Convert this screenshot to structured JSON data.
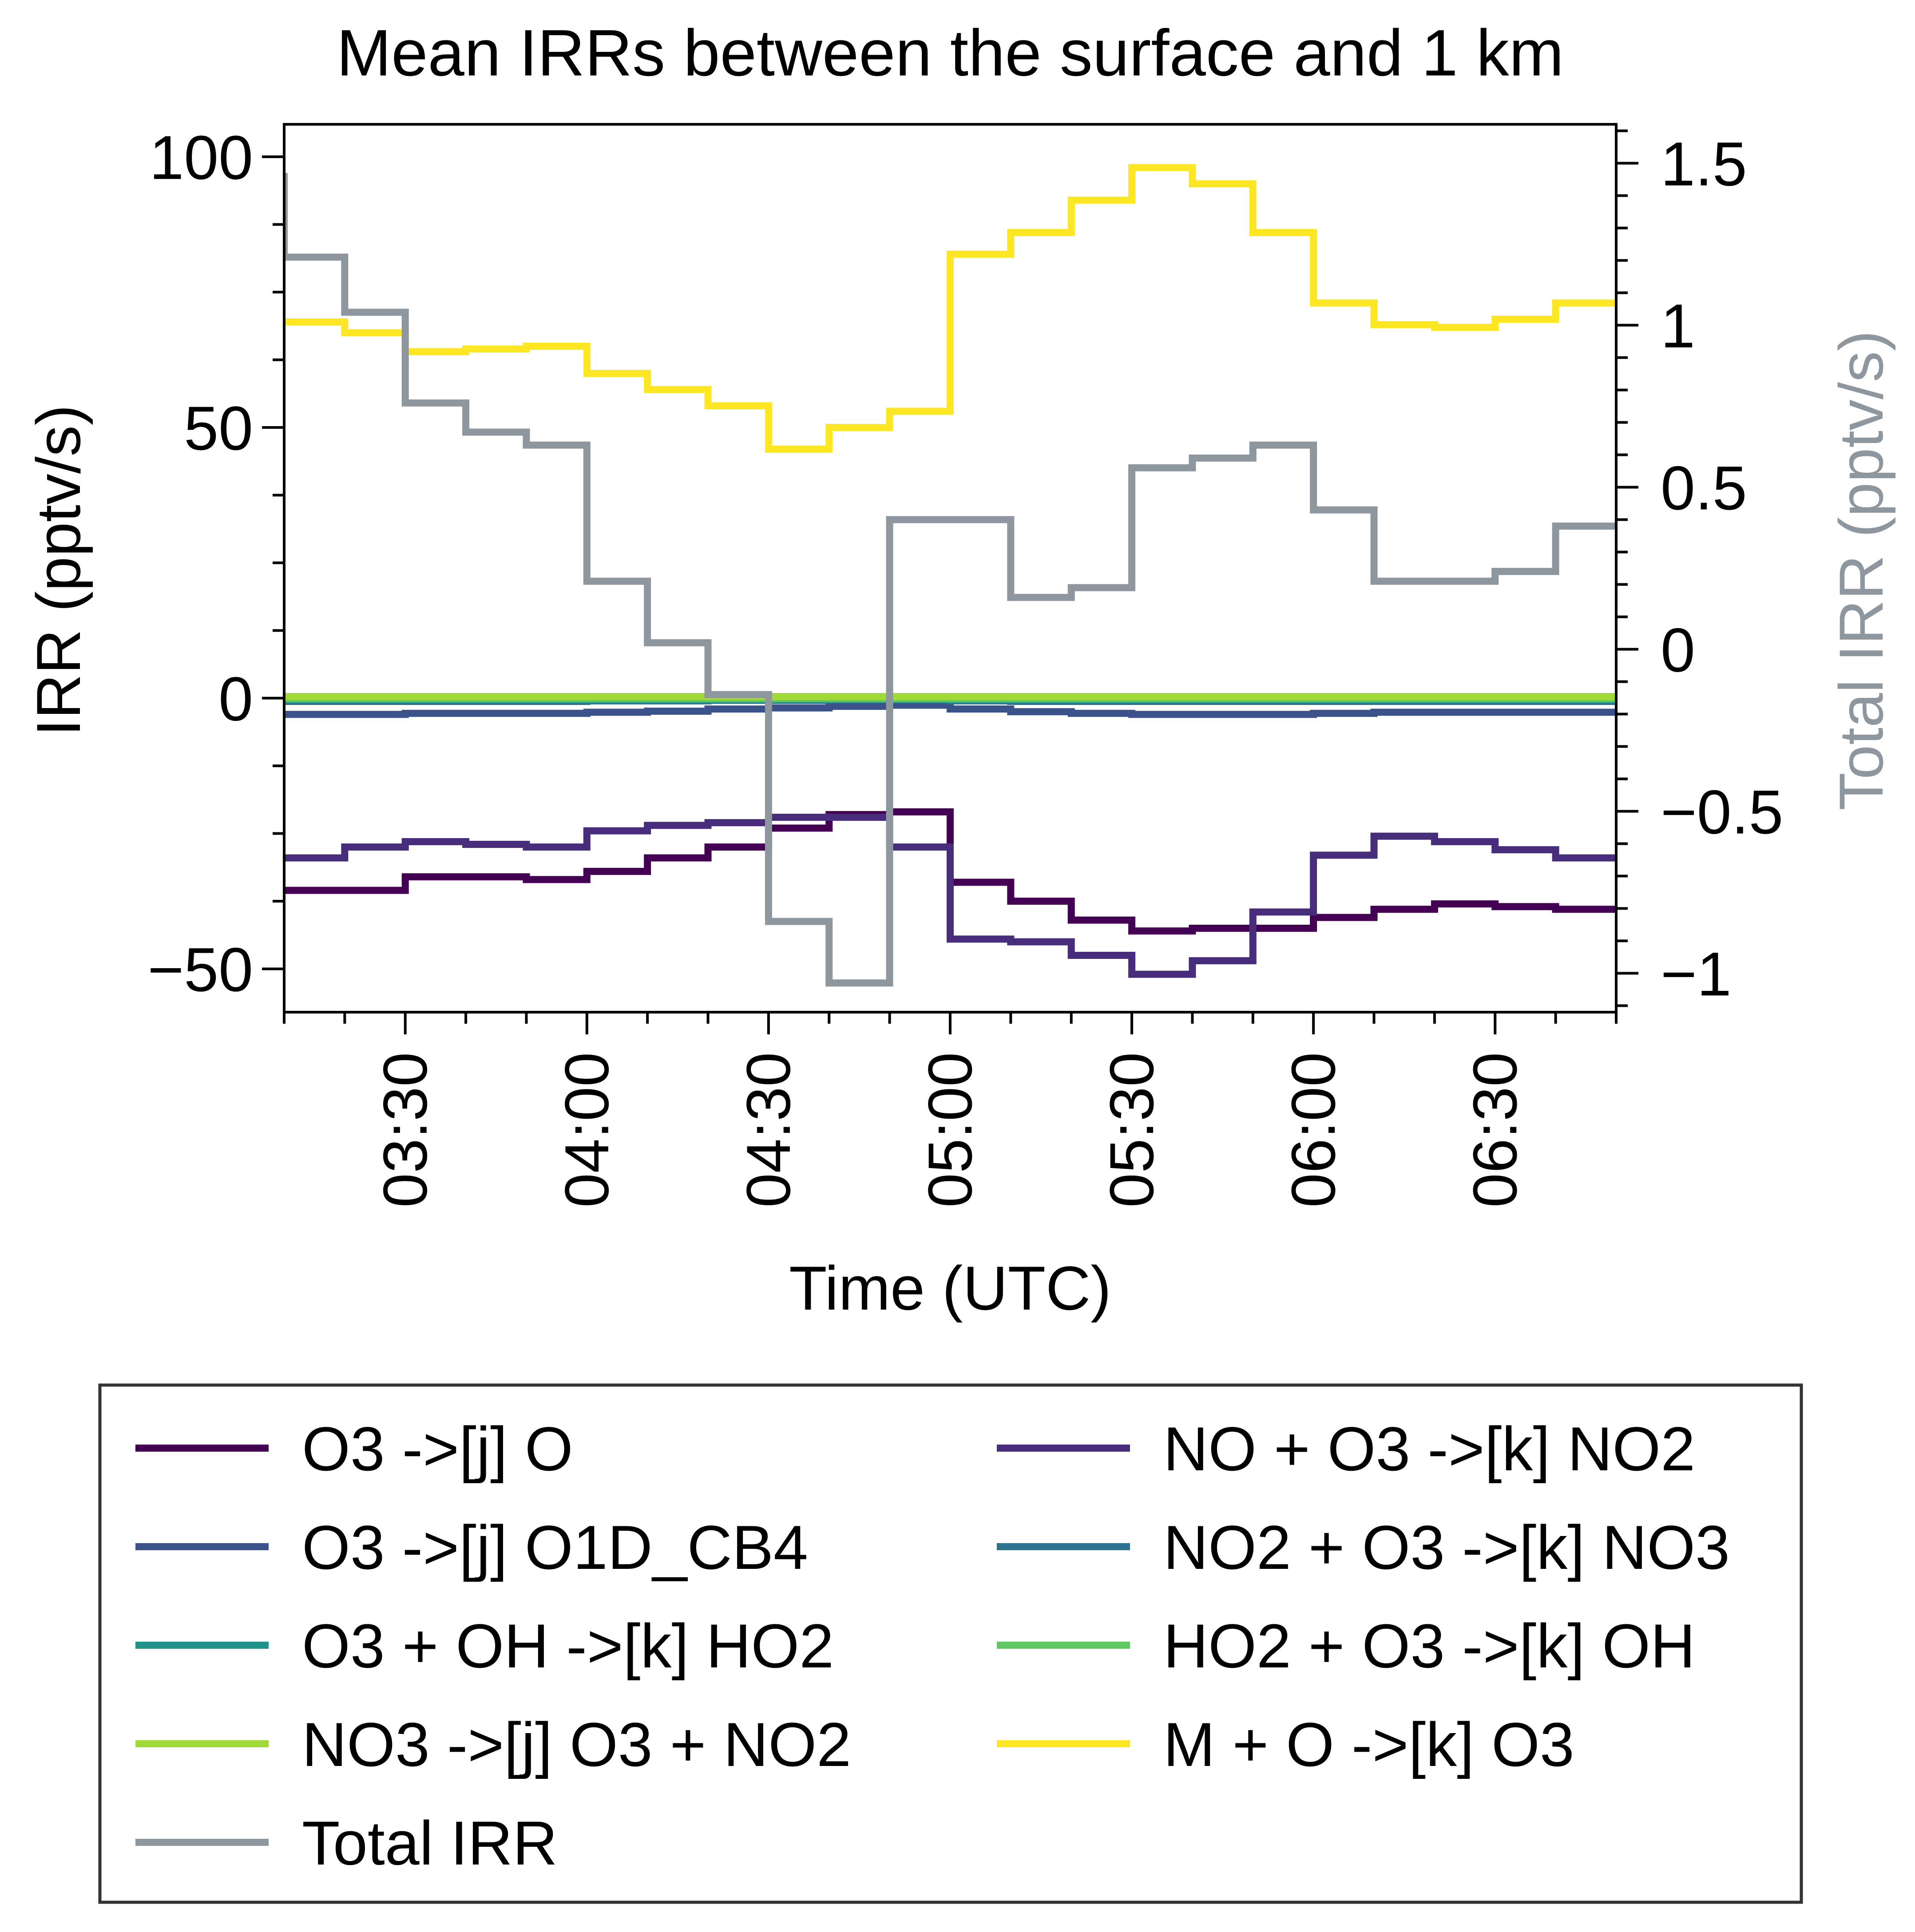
{
  "chart_data": {
    "type": "line",
    "drawstyle": "steps-post",
    "title": "Mean IRRs between the surface and 1 km",
    "xlabel": "Time (UTC)",
    "ylabel": "IRR (pptv/s)",
    "y2label": "Total IRR (pptv/s)",
    "xlim": [
      "03:10",
      "06:50"
    ],
    "ylim": [
      -58,
      106
    ],
    "y2lim": [
      -1.12,
      1.62
    ],
    "xticks": [
      "03:30",
      "04:00",
      "04:30",
      "05:00",
      "05:30",
      "06:00",
      "06:30"
    ],
    "yticks": [
      "100",
      "50",
      "0",
      "−50"
    ],
    "y2ticks": [
      "1.5",
      "1",
      "0.5",
      "0",
      "−0.5",
      "−1"
    ],
    "x": [
      "03:10",
      "03:20",
      "03:30",
      "03:40",
      "03:50",
      "04:00",
      "04:10",
      "04:20",
      "04:30",
      "04:40",
      "04:50",
      "05:00",
      "05:10",
      "05:20",
      "05:30",
      "05:40",
      "05:50",
      "06:00",
      "06:10",
      "06:20",
      "06:30",
      "06:40"
    ],
    "x_end": "06:50",
    "series": [
      {
        "name": "O3 ->[j] O",
        "color": "#440154",
        "axis": "left",
        "values": [
          -35.5,
          -35.5,
          -33,
          -33,
          -33.5,
          -32,
          -29.5,
          -27.5,
          -24,
          -21.5,
          -21,
          -34,
          -37.5,
          -41,
          -43,
          -42.5,
          -42.5,
          -40.5,
          -39,
          -38,
          -38.5,
          -39
        ]
      },
      {
        "name": "NO + O3 ->[k] NO2",
        "color": "#472d7b",
        "axis": "left",
        "values": [
          -29.5,
          -27.5,
          -26.5,
          -27,
          -27.5,
          -24.5,
          -23.5,
          -23,
          -22,
          -22,
          -27.5,
          -44.5,
          -45,
          -47.5,
          -51,
          -48.5,
          -39.5,
          -29,
          -25.5,
          -26.5,
          -28,
          -29.5
        ]
      },
      {
        "name": "O3 ->[j] O1D_CB4",
        "color": "#3b528b",
        "axis": "left",
        "values": [
          -3.0,
          -3.0,
          -2.8,
          -2.8,
          -2.8,
          -2.6,
          -2.4,
          -2.0,
          -1.8,
          -1.5,
          -1.3,
          -2.0,
          -2.5,
          -2.8,
          -3.0,
          -3.0,
          -3.0,
          -2.8,
          -2.6,
          -2.6,
          -2.6,
          -2.6
        ]
      },
      {
        "name": "NO2 + O3 ->[k] NO3",
        "color": "#2c728e",
        "axis": "left",
        "values": [
          -0.6,
          -0.6,
          -0.6,
          -0.6,
          -0.6,
          -0.5,
          -0.5,
          -0.4,
          -0.4,
          -0.3,
          -0.3,
          -0.5,
          -0.6,
          -0.6,
          -0.6,
          -0.6,
          -0.6,
          -0.6,
          -0.6,
          -0.6,
          -0.6,
          -0.6
        ]
      },
      {
        "name": "O3 + OH ->[k] HO2",
        "color": "#21918c",
        "axis": "left",
        "values": [
          -0.3,
          -0.3,
          -0.3,
          -0.3,
          -0.3,
          -0.3,
          -0.3,
          -0.2,
          -0.2,
          -0.2,
          -0.2,
          -0.3,
          -0.3,
          -0.3,
          -0.3,
          -0.3,
          -0.3,
          -0.3,
          -0.3,
          -0.3,
          -0.3,
          -0.3
        ]
      },
      {
        "name": "HO2 + O3 ->[k] OH",
        "color": "#5ec962",
        "axis": "left",
        "values": [
          -0.1,
          -0.1,
          -0.1,
          -0.1,
          -0.1,
          -0.1,
          -0.1,
          -0.1,
          -0.1,
          -0.1,
          -0.1,
          -0.1,
          -0.1,
          -0.1,
          -0.1,
          -0.1,
          -0.1,
          -0.1,
          -0.1,
          -0.1,
          -0.1,
          -0.1
        ]
      },
      {
        "name": "NO3 ->[j] O3 + NO2",
        "color": "#a0da39",
        "axis": "left",
        "values": [
          0.3,
          0.3,
          0.3,
          0.3,
          0.3,
          0.3,
          0.3,
          0.3,
          0.3,
          0.3,
          0.3,
          0.3,
          0.3,
          0.3,
          0.3,
          0.3,
          0.3,
          0.3,
          0.3,
          0.3,
          0.3,
          0.3
        ]
      },
      {
        "name": "M + O ->[k] O3",
        "color": "#fde725",
        "axis": "left",
        "values": [
          69.5,
          67.5,
          64,
          64.5,
          65,
          60,
          57,
          54,
          46,
          50,
          53,
          82,
          86,
          92,
          98,
          95,
          86,
          73,
          69,
          68.5,
          70,
          73
        ]
      },
      {
        "name": "Total IRR",
        "color": "#8e969e",
        "axis": "right",
        "values": [
          1.21,
          1.04,
          0.76,
          0.67,
          0.63,
          0.21,
          0.02,
          -0.14,
          -0.84,
          -1.03,
          0.4,
          0.4,
          0.16,
          0.19,
          0.56,
          0.59,
          0.63,
          0.43,
          0.21,
          0.21,
          0.24,
          0.38
        ],
        "initial_value": 1.47
      }
    ],
    "legend": {
      "placement": "below",
      "columns": 2,
      "order": [
        "O3 ->[j] O",
        "NO + O3 ->[k] NO2",
        "O3 ->[j] O1D_CB4",
        "NO2 + O3 ->[k] NO3",
        "O3 + OH ->[k] HO2",
        "HO2 + O3 ->[k] OH",
        "NO3 ->[j] O3 + NO2",
        "M + O ->[k] O3",
        "Total IRR"
      ]
    }
  }
}
